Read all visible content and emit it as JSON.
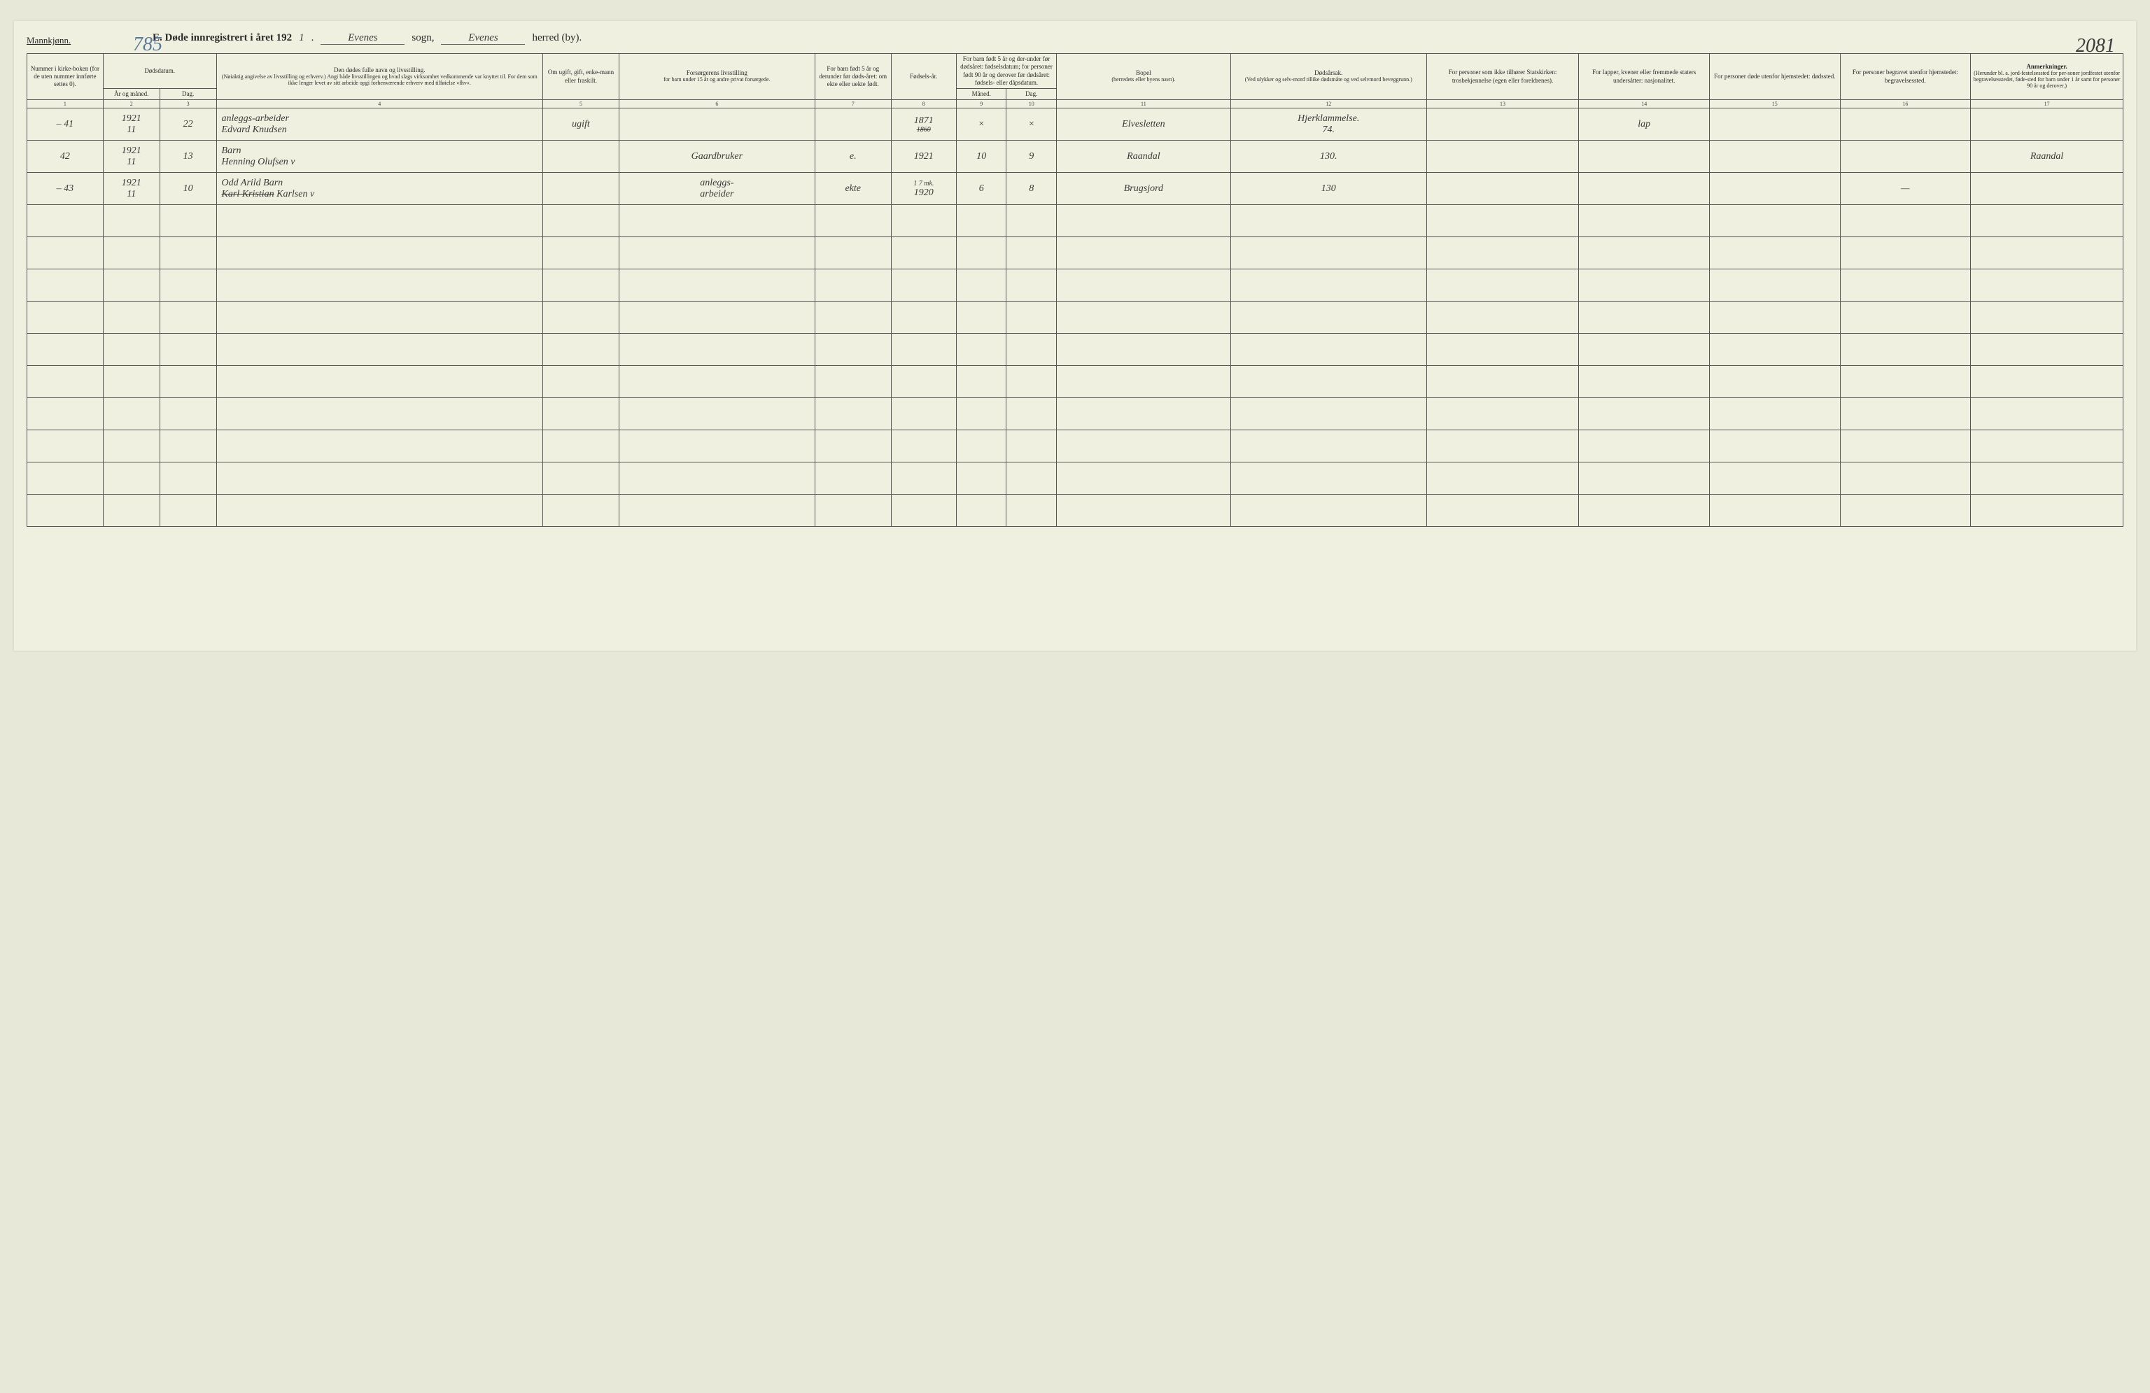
{
  "header": {
    "gender": "Mannkjønn.",
    "page_left": "785",
    "page_right": "2081",
    "title_prefix": "E.  Døde innregistrert i året 192",
    "year_suffix": "1",
    "sogn_label": "sogn,",
    "sogn": "Evenes",
    "herred_label": "herred (by).",
    "herred": "Evenes"
  },
  "columns": {
    "c1": "Nummer i kirke-boken (for de uten nummer innførte settes 0).",
    "c2_group": "Dødsdatum.",
    "c2": "År og måned.",
    "c3": "Dag.",
    "c4": "Den dødes fulle navn og livsstilling.",
    "c4_sub": "(Nøiaktig angivelse av livsstilling og erhverv.) Angi både livsstillingen og hvad slags virksomhet vedkommende var knyttet til. For dem som ikke lenger levet av sitt arbeide opgi forhenværende erhverv med tilføielse «fhv».",
    "c5": "Om ugift, gift, enke-mann eller fraskilt.",
    "c6": "Forsørgerens livsstilling",
    "c6_sub": "for barn under 15 år og andre privat forsørgede.",
    "c7": "For barn født 5 år og derunder før døds-året: om ekte eller uekte født.",
    "c8": "Fødsels-år.",
    "c9_group": "For barn født 5 år og der-under før dødsåret: fødselsdatum; for personer født 90 år og derover før dødsåret: fødsels- eller dåpsdatum.",
    "c9": "Måned.",
    "c10": "Dag.",
    "c11": "Bopel",
    "c11_sub": "(herredets eller byens navn).",
    "c12": "Dødsårsak.",
    "c12_sub": "(Ved ulykker og selv-mord tillike dødsmåte og ved selvmord beveggrunn.)",
    "c13": "For personer som ikke tilhører Statskirken: trosbekjennelse (egen eller foreldrenes).",
    "c14": "For lapper, kvener eller fremmede staters undersåtter: nasjonalitet.",
    "c15": "For personer døde utenfor hjemstedet: dødssted.",
    "c16": "For personer begravet utenfor hjemstedet: begravelsessted.",
    "c17": "Anmerkninger.",
    "c17_sub": "(Herunder bl. a. jord-festelsessted for per-soner jordfestet utenfor begravelsesstedet, føde-sted for barn under 1 år samt for personer 90 år og derover.)"
  },
  "colnums": [
    "1",
    "2",
    "3",
    "4",
    "5",
    "6",
    "7",
    "8",
    "9",
    "10",
    "11",
    "12",
    "13",
    "14",
    "15",
    "16",
    "17"
  ],
  "rows": [
    {
      "num": "– 41",
      "year_month": "1921\n11",
      "day": "22",
      "name_top": "anleggs-arbeider",
      "name": "Edvard Knudsen",
      "marital": "ugift",
      "provider": "",
      "legit": "",
      "birth_year": "1871",
      "birth_year_strike": "1860",
      "b_month": "×",
      "b_day": "×",
      "residence": "Elvesletten",
      "cause": "Hjerklammelse.\n74.",
      "faith": "",
      "nationality": "lap",
      "death_place": "",
      "burial_place": "",
      "remarks": ""
    },
    {
      "num": "42",
      "year_month": "1921\n11",
      "day": "13",
      "name_top": "Barn",
      "name": "Henning Olufsen v",
      "marital": "",
      "provider": "Gaardbruker",
      "legit": "e.",
      "birth_year": "1921",
      "b_month": "10",
      "b_day": "9",
      "residence": "Raandal",
      "cause": "130.",
      "faith": "",
      "nationality": "",
      "death_place": "",
      "burial_place": "",
      "remarks": "Raandal"
    },
    {
      "num": "– 43",
      "year_month": "1921\n11",
      "day": "10",
      "name_top": "Odd Arild        Barn",
      "name_strike": "Karl Kristian",
      "name": "Karlsen v",
      "marital": "",
      "provider": "anleggs-\narbeider",
      "legit": "ekte",
      "birth_year_top": "1 7 mk.",
      "birth_year": "1920",
      "b_month": "6",
      "b_day": "8",
      "residence": "Brugsjord",
      "cause": "130",
      "faith": "",
      "nationality": "",
      "death_place": "",
      "burial_place": "—",
      "remarks": ""
    }
  ],
  "empty_rows": 10,
  "colors": {
    "paper": "#eff0df",
    "ink": "#2a2a2a",
    "rule": "#555555",
    "hw_blue": "#5a7a9a"
  }
}
